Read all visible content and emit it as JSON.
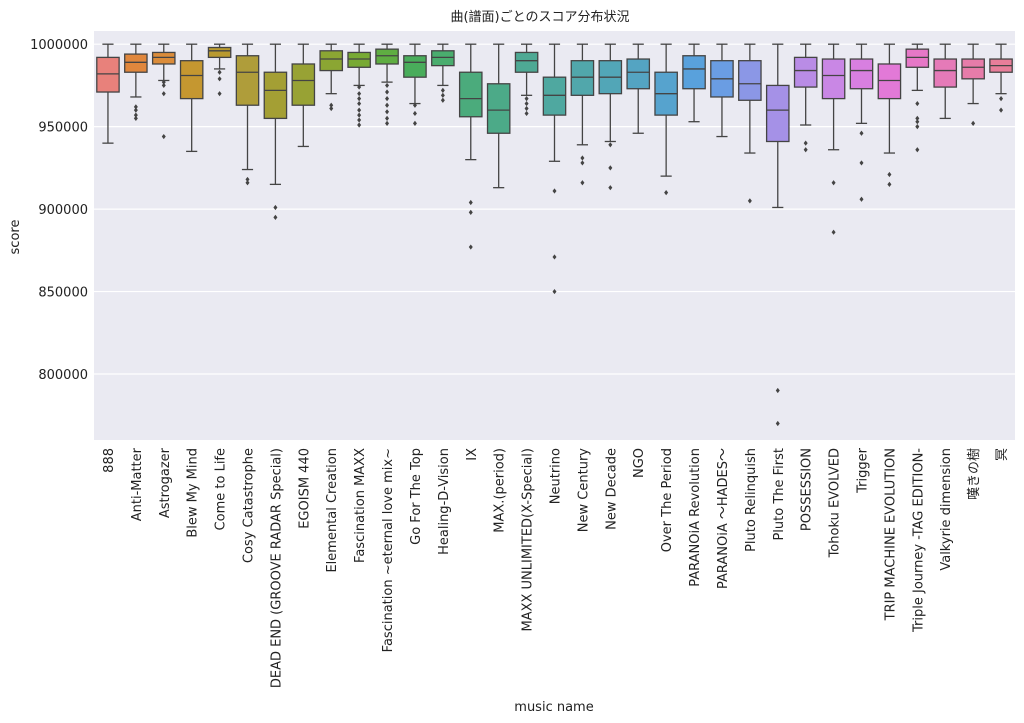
{
  "chart_data": {
    "type": "box",
    "title": "曲(譜面)ごとのスコア分布状況",
    "xlabel": "music name",
    "ylabel": "score",
    "ylim": [
      760000,
      1008000
    ],
    "yticks": [
      800000,
      850000,
      900000,
      950000,
      1000000
    ],
    "ytick_labels": [
      "800000",
      "850000",
      "900000",
      "950000",
      "1000000"
    ],
    "grid": true,
    "series": [
      {
        "name": "888",
        "color": "#e8817b",
        "whisker_low": 940000,
        "q1": 971000,
        "median": 982000,
        "q3": 992000,
        "whisker_high": 1000000,
        "outliers": []
      },
      {
        "name": "Anti-Matter",
        "color": "#e0873d",
        "whisker_low": 968000,
        "q1": 983000,
        "median": 989000,
        "q3": 994000,
        "whisker_high": 1000000,
        "outliers": [
          962000,
          960000,
          957000,
          955000
        ]
      },
      {
        "name": "Astrogazer",
        "color": "#db8c3a",
        "whisker_low": 978000,
        "q1": 988000,
        "median": 992000,
        "q3": 995000,
        "whisker_high": 1000000,
        "outliers": [
          977000,
          975000,
          970000,
          944000
        ]
      },
      {
        "name": "Blew My Mind",
        "color": "#c59730",
        "whisker_low": 935000,
        "q1": 967000,
        "median": 981000,
        "q3": 990000,
        "whisker_high": 1000000,
        "outliers": []
      },
      {
        "name": "Come to Life",
        "color": "#b99a30",
        "whisker_low": 985000,
        "q1": 992000,
        "median": 996000,
        "q3": 998000,
        "whisker_high": 1000000,
        "outliers": [
          983000,
          979000,
          970000
        ]
      },
      {
        "name": "Cosy Catastrophe",
        "color": "#af9d3a",
        "whisker_low": 924000,
        "q1": 963000,
        "median": 983000,
        "q3": 993000,
        "whisker_high": 1000000,
        "outliers": [
          918000,
          916000
        ]
      },
      {
        "name": "DEAD END (GROOVE RADAR Special)",
        "color": "#a49f34",
        "whisker_low": 915000,
        "q1": 955000,
        "median": 972000,
        "q3": 983000,
        "whisker_high": 1000000,
        "outliers": [
          901000,
          895000
        ]
      },
      {
        "name": "EGOISM 440",
        "color": "#98a234",
        "whisker_low": 938000,
        "q1": 963000,
        "median": 978000,
        "q3": 988000,
        "whisker_high": 1000000,
        "outliers": []
      },
      {
        "name": "Elemental Creation",
        "color": "#8ba633",
        "whisker_low": 970000,
        "q1": 984000,
        "median": 991000,
        "q3": 996000,
        "whisker_high": 1000000,
        "outliers": [
          963000,
          961000
        ]
      },
      {
        "name": "Fascination MAXX",
        "color": "#78aa34",
        "whisker_low": 975000,
        "q1": 986000,
        "median": 991000,
        "q3": 995000,
        "whisker_high": 1000000,
        "outliers": [
          974000,
          970000,
          967000,
          964000,
          960000,
          957000,
          954000,
          951000
        ]
      },
      {
        "name": "Fascination ~eternal love mix~",
        "color": "#5fad42",
        "whisker_low": 977000,
        "q1": 988000,
        "median": 993000,
        "q3": 997000,
        "whisker_high": 1000000,
        "outliers": [
          975000,
          971000,
          967000,
          963000,
          959000,
          955000,
          952000
        ]
      },
      {
        "name": "Go For The Top",
        "color": "#49ad5b",
        "whisker_low": 964000,
        "q1": 980000,
        "median": 989000,
        "q3": 993000,
        "whisker_high": 1000000,
        "outliers": [
          963000,
          958000,
          952000
        ]
      },
      {
        "name": "Healing-D-Vision",
        "color": "#4aad6e",
        "whisker_low": 975000,
        "q1": 987000,
        "median": 992000,
        "q3": 996000,
        "whisker_high": 1000000,
        "outliers": [
          972000,
          969000,
          966000
        ]
      },
      {
        "name": "IX",
        "color": "#4bab7c",
        "whisker_low": 930000,
        "q1": 956000,
        "median": 967000,
        "q3": 983000,
        "whisker_high": 1000000,
        "outliers": [
          904000,
          898000,
          877000
        ]
      },
      {
        "name": "MAX.(period)",
        "color": "#4caa88",
        "whisker_low": 913000,
        "q1": 946000,
        "median": 960000,
        "q3": 976000,
        "whisker_high": 1000000,
        "outliers": []
      },
      {
        "name": "MAXX UNLIMITED(X-Special)",
        "color": "#4ea994",
        "whisker_low": 969000,
        "q1": 983000,
        "median": 990000,
        "q3": 995000,
        "whisker_high": 1000000,
        "outliers": [
          967000,
          964000,
          961000,
          958000
        ]
      },
      {
        "name": "Neutrino",
        "color": "#4fa8a0",
        "whisker_low": 929000,
        "q1": 957000,
        "median": 969000,
        "q3": 980000,
        "whisker_high": 1000000,
        "outliers": [
          911000,
          871000,
          850000
        ]
      },
      {
        "name": "New Century",
        "color": "#51a7ab",
        "whisker_low": 939000,
        "q1": 969000,
        "median": 980000,
        "q3": 990000,
        "whisker_high": 1000000,
        "outliers": [
          931000,
          928000,
          916000
        ]
      },
      {
        "name": "New Decade",
        "color": "#52a6b7",
        "whisker_low": 941000,
        "q1": 970000,
        "median": 980000,
        "q3": 990000,
        "whisker_high": 1000000,
        "outliers": [
          939000,
          925000,
          913000
        ]
      },
      {
        "name": "NGO",
        "color": "#54a4c2",
        "whisker_low": 946000,
        "q1": 973000,
        "median": 983000,
        "q3": 991000,
        "whisker_high": 1000000,
        "outliers": []
      },
      {
        "name": "Over The Period",
        "color": "#56a3ce",
        "whisker_low": 920000,
        "q1": 957000,
        "median": 970000,
        "q3": 983000,
        "whisker_high": 1000000,
        "outliers": [
          910000
        ]
      },
      {
        "name": "PARANOiA Revolution",
        "color": "#59a1dc",
        "whisker_low": 953000,
        "q1": 973000,
        "median": 985000,
        "q3": 993000,
        "whisker_high": 1000000,
        "outliers": []
      },
      {
        "name": "PARANOiA ～HADES～",
        "color": "#6a9de3",
        "whisker_low": 944000,
        "q1": 968000,
        "median": 979000,
        "q3": 990000,
        "whisker_high": 1000000,
        "outliers": []
      },
      {
        "name": "Pluto Relinquish",
        "color": "#8b97e6",
        "whisker_low": 934000,
        "q1": 966000,
        "median": 976000,
        "q3": 990000,
        "whisker_high": 1000000,
        "outliers": [
          905000
        ]
      },
      {
        "name": "Pluto The First",
        "color": "#a591e7",
        "whisker_low": 901000,
        "q1": 941000,
        "median": 960000,
        "q3": 975000,
        "whisker_high": 1000000,
        "outliers": [
          790000,
          770000
        ]
      },
      {
        "name": "POSSESSION",
        "color": "#b98ce6",
        "whisker_low": 951000,
        "q1": 974000,
        "median": 984000,
        "q3": 992000,
        "whisker_high": 1000000,
        "outliers": [
          940000,
          936000
        ]
      },
      {
        "name": "Tohoku EVOLVED",
        "color": "#c987e5",
        "whisker_low": 936000,
        "q1": 967000,
        "median": 981000,
        "q3": 991000,
        "whisker_high": 1000000,
        "outliers": [
          916000,
          886000
        ]
      },
      {
        "name": "Trigger",
        "color": "#d87fe0",
        "whisker_low": 952000,
        "q1": 973000,
        "median": 984000,
        "q3": 991000,
        "whisker_high": 1000000,
        "outliers": [
          946000,
          928000,
          906000
        ]
      },
      {
        "name": "TRIP MACHINE EVOLUTION",
        "color": "#e279d7",
        "whisker_low": 934000,
        "q1": 967000,
        "median": 978000,
        "q3": 988000,
        "whisker_high": 1000000,
        "outliers": [
          921000,
          915000
        ]
      },
      {
        "name": "Triple Journey -TAG EDITION-",
        "color": "#e678c7",
        "whisker_low": 972000,
        "q1": 986000,
        "median": 992000,
        "q3": 997000,
        "whisker_high": 1000000,
        "outliers": [
          964000,
          955000,
          953000,
          950000,
          936000
        ]
      },
      {
        "name": "Valkyrie dimension",
        "color": "#e57ab8",
        "whisker_low": 955000,
        "q1": 974000,
        "median": 984000,
        "q3": 991000,
        "whisker_high": 1000000,
        "outliers": []
      },
      {
        "name": "嘆きの樹",
        "color": "#e67ca9",
        "whisker_low": 964000,
        "q1": 979000,
        "median": 986000,
        "q3": 991000,
        "whisker_high": 1000000,
        "outliers": [
          952000
        ]
      },
      {
        "name": "冥",
        "color": "#e87e9a",
        "whisker_low": 970000,
        "q1": 983000,
        "median": 987000,
        "q3": 991000,
        "whisker_high": 1000000,
        "outliers": [
          967000,
          960000
        ]
      }
    ]
  }
}
